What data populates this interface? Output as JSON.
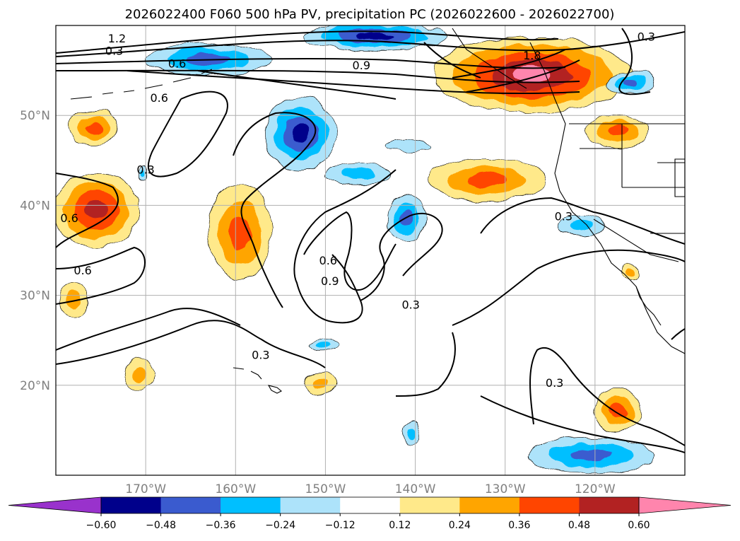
{
  "chart_data": {
    "type": "contour_map",
    "title": "2026022400 F060 500 hPa PV, precipitation PC (2026022600 - 2026022700)",
    "projection": "PlateCarree",
    "extent": {
      "lon": [
        -180,
        -110
      ],
      "lat": [
        10,
        60
      ]
    },
    "gridlines": true,
    "lon_ticks": [
      {
        "value": -170,
        "label": "170°W"
      },
      {
        "value": -160,
        "label": "160°W"
      },
      {
        "value": -150,
        "label": "150°W"
      },
      {
        "value": -140,
        "label": "140°W"
      },
      {
        "value": -130,
        "label": "130°W"
      },
      {
        "value": -120,
        "label": "120°W"
      }
    ],
    "lat_ticks": [
      {
        "value": 20,
        "label": "20°N"
      },
      {
        "value": 30,
        "label": "30°N"
      },
      {
        "value": 40,
        "label": "40°N"
      },
      {
        "value": 50,
        "label": "50°N"
      }
    ],
    "colorbar": {
      "orientation": "horizontal",
      "extend": "both",
      "levels": [
        -0.6,
        -0.48,
        -0.36,
        -0.24,
        -0.12,
        0.12,
        0.24,
        0.36,
        0.48,
        0.6
      ],
      "tick_labels": [
        "−0.60",
        "−0.48",
        "−0.36",
        "−0.24",
        "−0.12",
        "0.12",
        "0.24",
        "0.36",
        "0.48",
        "0.60"
      ],
      "colors": [
        "#9932CC",
        "#00008B",
        "#3A5BCF",
        "#00BFFF",
        "#ADE3FA",
        "#FFFFFF",
        "#FFE98A",
        "#FFA500",
        "#FF4500",
        "#B22222",
        "#FF85AD"
      ]
    },
    "pv_contour_levels": [
      0.3,
      0.6,
      0.9,
      1.2,
      1.5,
      1.8
    ],
    "contour_labels": [
      {
        "text": "0.3",
        "lon": -173.5,
        "lat": 57.2
      },
      {
        "text": "1.2",
        "lon": -173.2,
        "lat": 58.6
      },
      {
        "text": "0.6",
        "lon": -166.5,
        "lat": 55.8
      },
      {
        "text": "0.9",
        "lon": -146.0,
        "lat": 55.6
      },
      {
        "text": "1.8",
        "lon": -127.0,
        "lat": 56.7
      },
      {
        "text": "0.3",
        "lon": -114.3,
        "lat": 58.8
      },
      {
        "text": "0.6",
        "lon": -168.5,
        "lat": 52.0
      },
      {
        "text": "0.3",
        "lon": -170.0,
        "lat": 44.0
      },
      {
        "text": "0.6",
        "lon": -178.5,
        "lat": 38.6
      },
      {
        "text": "0.6",
        "lon": -177.0,
        "lat": 32.8
      },
      {
        "text": "0.3",
        "lon": -123.5,
        "lat": 38.8
      },
      {
        "text": "0.6",
        "lon": -149.7,
        "lat": 33.9
      },
      {
        "text": "0.9",
        "lon": -149.5,
        "lat": 31.6
      },
      {
        "text": "0.3",
        "lon": -140.5,
        "lat": 29.0
      },
      {
        "text": "0.3",
        "lon": -157.2,
        "lat": 23.4
      },
      {
        "text": "0.3",
        "lon": -124.5,
        "lat": 20.3
      }
    ],
    "precip_anomaly_regions": [
      {
        "lon": -127.0,
        "lat": 54.5,
        "rlon": 11,
        "rlat": 4.2,
        "sign": "positive",
        "peak": 0.65
      },
      {
        "lon": -132.0,
        "lat": 42.8,
        "rlon": 6.5,
        "rlat": 2.4,
        "sign": "positive",
        "peak": 0.42
      },
      {
        "lon": -175.5,
        "lat": 39.5,
        "rlon": 4.8,
        "rlat": 4.2,
        "sign": "positive",
        "peak": 0.5
      },
      {
        "lon": -159.5,
        "lat": 37.0,
        "rlon": 3.6,
        "rlat": 5.2,
        "sign": "positive",
        "peak": 0.42
      },
      {
        "lon": -175.8,
        "lat": 48.6,
        "rlon": 2.8,
        "rlat": 2.0,
        "sign": "positive",
        "peak": 0.38
      },
      {
        "lon": -170.7,
        "lat": 21.2,
        "rlon": 1.7,
        "rlat": 1.8,
        "sign": "positive",
        "peak": 0.28
      },
      {
        "lon": -178.0,
        "lat": 29.5,
        "rlon": 1.6,
        "rlat": 1.9,
        "sign": "positive",
        "peak": 0.28
      },
      {
        "lon": -150.5,
        "lat": 20.2,
        "rlon": 1.8,
        "rlat": 1.5,
        "sign": "positive",
        "peak": 0.3
      },
      {
        "lon": -117.5,
        "lat": 48.3,
        "rlon": 3.6,
        "rlat": 1.8,
        "sign": "positive",
        "peak": 0.4
      },
      {
        "lon": -117.5,
        "lat": 17.2,
        "rlon": 2.6,
        "rlat": 2.4,
        "sign": "positive",
        "peak": 0.4
      },
      {
        "lon": -116.0,
        "lat": 32.8,
        "rlon": 0.9,
        "rlat": 0.9,
        "sign": "positive",
        "peak": 0.26
      },
      {
        "lon": -152.8,
        "lat": 48.0,
        "rlon": 4.0,
        "rlat": 4.0,
        "sign": "negative",
        "peak": -0.52
      },
      {
        "lon": -163.0,
        "lat": 56.2,
        "rlon": 7.0,
        "rlat": 1.8,
        "sign": "negative",
        "peak": -0.4
      },
      {
        "lon": -144.5,
        "lat": 58.8,
        "rlon": 8.0,
        "rlat": 1.6,
        "sign": "negative",
        "peak": -0.56
      },
      {
        "lon": -141.0,
        "lat": 38.6,
        "rlon": 2.2,
        "rlat": 2.5,
        "sign": "negative",
        "peak": -0.4
      },
      {
        "lon": -146.5,
        "lat": 43.5,
        "rlon": 3.8,
        "rlat": 1.2,
        "sign": "negative",
        "peak": -0.25
      },
      {
        "lon": -140.8,
        "lat": 46.6,
        "rlon": 2.5,
        "rlat": 0.7,
        "sign": "negative",
        "peak": -0.22
      },
      {
        "lon": -120.5,
        "lat": 12.2,
        "rlon": 7.0,
        "rlat": 2.0,
        "sign": "negative",
        "peak": -0.4
      },
      {
        "lon": -116.0,
        "lat": 53.6,
        "rlon": 2.6,
        "rlat": 1.4,
        "sign": "negative",
        "peak": -0.36
      },
      {
        "lon": -121.5,
        "lat": 37.8,
        "rlon": 2.6,
        "rlat": 1.2,
        "sign": "negative",
        "peak": -0.28
      },
      {
        "lon": -150.2,
        "lat": 24.5,
        "rlon": 1.6,
        "rlat": 0.7,
        "sign": "negative",
        "peak": -0.25
      },
      {
        "lon": -140.5,
        "lat": 14.6,
        "rlon": 0.9,
        "rlat": 1.2,
        "sign": "negative",
        "peak": -0.25
      },
      {
        "lon": -170.3,
        "lat": 43.5,
        "rlon": 0.4,
        "rlat": 0.8,
        "sign": "negative",
        "peak": -0.3
      }
    ]
  }
}
